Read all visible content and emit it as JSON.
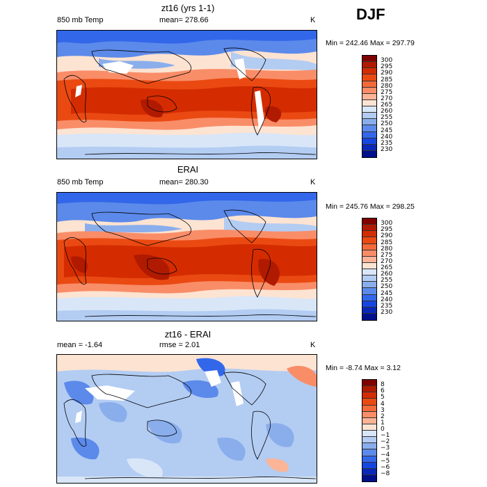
{
  "season": "DJF",
  "panels": [
    {
      "title": "zt16 (yrs 1-1)",
      "left_label": "850 mb Temp",
      "center_label": "mean= 278.66",
      "units": "K",
      "minmax": "Min = 242.46 Max = 297.79",
      "colorbar": {
        "labels": [
          "300",
          "295",
          "290",
          "285",
          "280",
          "275",
          "270",
          "265",
          "260",
          "255",
          "250",
          "245",
          "240",
          "235",
          "230"
        ],
        "colors": [
          "#800000",
          "#b01a00",
          "#d42c00",
          "#ea4a12",
          "#f46a3a",
          "#f98d68",
          "#fcb496",
          "#fde3d2",
          "#d8e6f8",
          "#b3ccf2",
          "#8aaeec",
          "#5c8aea",
          "#3367ea",
          "#1646e0",
          "#0a28b8",
          "#00108a"
        ]
      }
    },
    {
      "title": "ERAI",
      "left_label": "850 mb Temp",
      "center_label": "mean= 280.30",
      "units": "K",
      "minmax": "Min = 245.76 Max = 298.25",
      "colorbar": {
        "labels": [
          "300",
          "295",
          "290",
          "285",
          "280",
          "275",
          "270",
          "265",
          "260",
          "255",
          "250",
          "245",
          "240",
          "235",
          "230"
        ],
        "colors": [
          "#800000",
          "#b01a00",
          "#d42c00",
          "#ea4a12",
          "#f46a3a",
          "#f98d68",
          "#fcb496",
          "#fde3d2",
          "#d8e6f8",
          "#b3ccf2",
          "#8aaeec",
          "#5c8aea",
          "#3367ea",
          "#1646e0",
          "#0a28b8",
          "#00108a"
        ]
      }
    },
    {
      "title": "zt16 - ERAI",
      "left_label": "mean =   -1.64",
      "center_label": "rmse =    2.01",
      "units": "K",
      "minmax": "Min =  -8.74 Max =    3.12",
      "colorbar": {
        "labels": [
          "8",
          "6",
          "5",
          "4",
          "3",
          "2",
          "1",
          "0",
          "−1",
          "−2",
          "−3",
          "−4",
          "−5",
          "−6",
          "−8"
        ],
        "colors": [
          "#800000",
          "#b01a00",
          "#d42c00",
          "#ea4a12",
          "#f46a3a",
          "#f98d68",
          "#fcb496",
          "#fde3d2",
          "#d8e6f8",
          "#b3ccf2",
          "#8aaeec",
          "#5c8aea",
          "#3367ea",
          "#1646e0",
          "#0a28b8",
          "#00108a"
        ]
      }
    }
  ]
}
